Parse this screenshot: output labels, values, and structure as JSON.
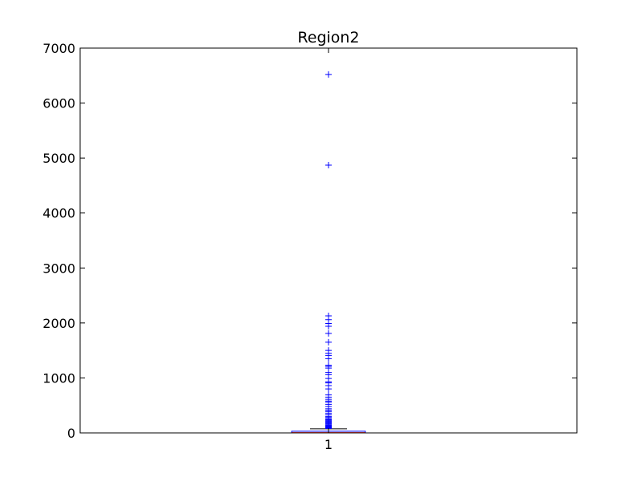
{
  "chart_data": {
    "type": "box",
    "title": "Region2",
    "xlabel": "",
    "ylabel": "",
    "categories": [
      "1"
    ],
    "ylim": [
      0,
      7000
    ],
    "yticks": [
      0,
      1000,
      2000,
      3000,
      4000,
      5000,
      6000,
      7000
    ],
    "ytick_labels": [
      "0",
      "1000",
      "2000",
      "3000",
      "4000",
      "5000",
      "6000",
      "7000"
    ],
    "grid": false,
    "boxes": [
      {
        "category": "1",
        "q1": 0,
        "median": 5,
        "q3": 30,
        "whisker_low": 0,
        "whisker_high": 75,
        "outliers": [
          6520,
          4870,
          2130,
          2060,
          1990,
          1940,
          1810,
          1650,
          1500,
          1450,
          1410,
          1350,
          1230,
          1210,
          1180,
          1100,
          1060,
          990,
          930,
          910,
          860,
          800,
          690,
          650,
          610,
          580,
          560,
          520,
          480,
          440,
          410,
          390,
          360,
          330,
          300,
          280,
          260,
          240,
          225,
          210,
          195,
          180,
          165,
          150,
          140,
          130,
          120,
          110,
          100,
          90,
          85,
          80
        ]
      }
    ],
    "colors": {
      "box": "#0000ff",
      "median": "#ff0000",
      "whisker": "#000000",
      "outlier": "#0000ff",
      "axes": "#000000"
    },
    "outlier_marker": "+"
  }
}
